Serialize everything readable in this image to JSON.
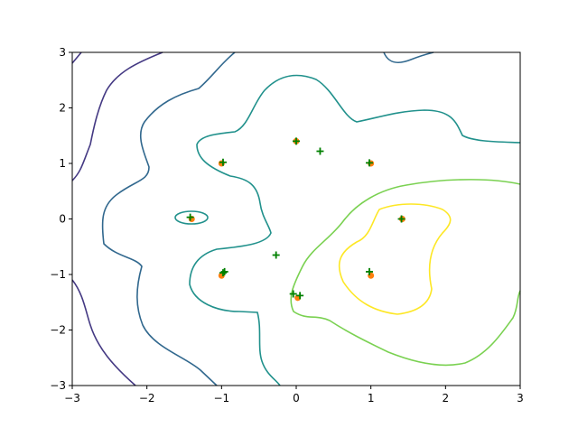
{
  "chart_data": {
    "type": "scatter",
    "xlim": [
      -3,
      3
    ],
    "ylim": [
      -3,
      3
    ],
    "xticks": [
      {
        "value": -3,
        "label": "−3"
      },
      {
        "value": -2,
        "label": "−2"
      },
      {
        "value": -1,
        "label": "−1"
      },
      0,
      1,
      2,
      3
    ],
    "yticks": [
      {
        "value": -3,
        "label": "−3"
      },
      {
        "value": -2,
        "label": "−2"
      },
      {
        "value": -1,
        "label": "−1"
      },
      0,
      1,
      2,
      3
    ],
    "series": [
      {
        "color": "#ff7f0e",
        "marker": "dot",
        "x": [
          -1.4,
          -1.0,
          0.0,
          1.0,
          1.42,
          1.0,
          0.02,
          -1.0
        ],
        "y": [
          0.0,
          1.0,
          1.4,
          1.0,
          0.0,
          -1.02,
          -1.42,
          -1.02
        ]
      },
      {
        "color": "#008000",
        "marker": "plus",
        "x": [
          -1.42,
          -0.98,
          0.0,
          0.98,
          1.41,
          0.98,
          0.05,
          -0.98,
          0.32,
          -0.27,
          -0.04,
          -0.96
        ],
        "y": [
          0.03,
          1.02,
          1.4,
          1.01,
          0.0,
          -0.95,
          -1.38,
          -0.97,
          1.22,
          -0.65,
          -1.35,
          -0.95
        ]
      }
    ]
  }
}
